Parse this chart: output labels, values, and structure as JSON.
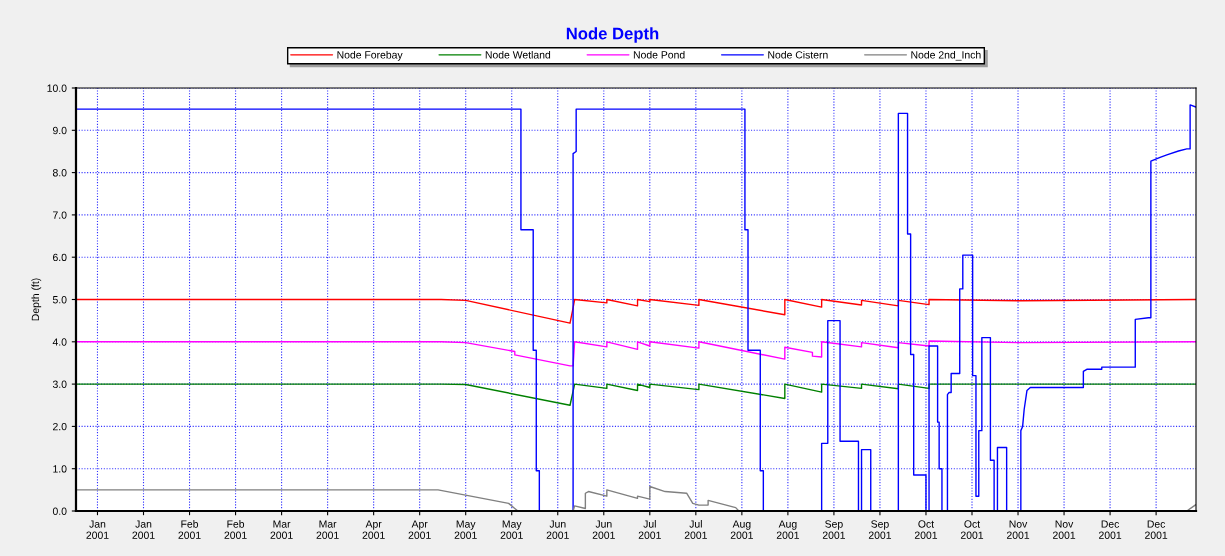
{
  "chart_data": {
    "type": "line",
    "title": "Node Depth",
    "ylabel": "Depth (ft)",
    "xlim": [
      "2001-01-01",
      "2002-01-01"
    ],
    "xticks": [
      {
        "value": "2001-01-08",
        "label": "Jan\n2001"
      },
      {
        "value": "2001-01-23",
        "label": "Jan\n2001"
      },
      {
        "value": "2001-02-07",
        "label": "Feb\n2001"
      },
      {
        "value": "2001-02-22",
        "label": "Feb\n2001"
      },
      {
        "value": "2001-03-09",
        "label": "Mar\n2001"
      },
      {
        "value": "2001-03-24",
        "label": "Mar\n2001"
      },
      {
        "value": "2001-04-08",
        "label": "Apr\n2001"
      },
      {
        "value": "2001-04-23",
        "label": "Apr\n2001"
      },
      {
        "value": "2001-05-08",
        "label": "May\n2001"
      },
      {
        "value": "2001-05-23",
        "label": "May\n2001"
      },
      {
        "value": "2001-06-07",
        "label": "Jun\n2001"
      },
      {
        "value": "2001-06-22",
        "label": "Jun\n2001"
      },
      {
        "value": "2001-07-07",
        "label": "Jul\n2001"
      },
      {
        "value": "2001-07-22",
        "label": "Jul\n2001"
      },
      {
        "value": "2001-08-06",
        "label": "Aug\n2001"
      },
      {
        "value": "2001-08-21",
        "label": "Aug\n2001"
      },
      {
        "value": "2001-09-05",
        "label": "Sep\n2001"
      },
      {
        "value": "2001-09-20",
        "label": "Sep\n2001"
      },
      {
        "value": "2001-10-05",
        "label": "Oct\n2001"
      },
      {
        "value": "2001-10-20",
        "label": "Oct\n2001"
      },
      {
        "value": "2001-11-04",
        "label": "Nov\n2001"
      },
      {
        "value": "2001-11-19",
        "label": "Nov\n2001"
      },
      {
        "value": "2001-12-04",
        "label": "Dec\n2001"
      },
      {
        "value": "2001-12-19",
        "label": "Dec\n2001"
      }
    ],
    "ylim": [
      0,
      10
    ],
    "yticks": [
      {
        "value": 0,
        "label": "0.0"
      },
      {
        "value": 1,
        "label": "1.0"
      },
      {
        "value": 2,
        "label": "2.0"
      },
      {
        "value": 3,
        "label": "3.0"
      },
      {
        "value": 4,
        "label": "4.0"
      },
      {
        "value": 5,
        "label": "5.0"
      },
      {
        "value": 6,
        "label": "6.0"
      },
      {
        "value": 7,
        "label": "7.0"
      },
      {
        "value": 8,
        "label": "8.0"
      },
      {
        "value": 9,
        "label": "9.0"
      },
      {
        "value": 10,
        "label": "10.0"
      }
    ],
    "grid": true,
    "legend": "top",
    "series": [
      {
        "name": "Node Forebay",
        "color": "#ff0000",
        "x": [
          "2001-01-01",
          "2001-04-30",
          "2001-05-08",
          "2001-06-11",
          "2001-06-12",
          "2001-06-12T12:00",
          "2001-06-23",
          "2001-06-23",
          "2001-07-03",
          "2001-07-03",
          "2001-07-07",
          "2001-07-07",
          "2001-07-23",
          "2001-07-23",
          "2001-08-20",
          "2001-08-20",
          "2001-09-01",
          "2001-09-01",
          "2001-09-14",
          "2001-09-14",
          "2001-09-26",
          "2001-09-26",
          "2001-10-06",
          "2001-10-06",
          "2001-11-05",
          "2001-12-31T23:00"
        ],
        "values": [
          5.0,
          5.0,
          4.98,
          4.44,
          4.8,
          5.0,
          4.92,
          5.0,
          4.85,
          5.0,
          4.95,
          5.0,
          4.86,
          5.0,
          4.64,
          5.0,
          4.82,
          5.0,
          4.87,
          4.98,
          4.85,
          4.98,
          4.88,
          5.0,
          4.97,
          5.0
        ]
      },
      {
        "name": "Node Wetland",
        "color": "#008000",
        "x": [
          "2001-01-01",
          "2001-04-30",
          "2001-05-08",
          "2001-06-11",
          "2001-06-12T12:00",
          "2001-06-23",
          "2001-06-23",
          "2001-07-03",
          "2001-07-03",
          "2001-07-07",
          "2001-07-07",
          "2001-07-23",
          "2001-07-23",
          "2001-08-20",
          "2001-08-20",
          "2001-09-01",
          "2001-09-01",
          "2001-09-14",
          "2001-09-14",
          "2001-09-26",
          "2001-09-26",
          "2001-10-06",
          "2001-10-06",
          "2001-12-31T23:00"
        ],
        "values": [
          3.0,
          3.0,
          2.99,
          2.5,
          3.0,
          2.9,
          3.0,
          2.85,
          3.0,
          2.92,
          3.0,
          2.87,
          3.0,
          2.66,
          3.0,
          2.81,
          3.0,
          2.9,
          3.0,
          2.89,
          3.0,
          2.9,
          3.0,
          3.0
        ]
      },
      {
        "name": "Node Pond",
        "color": "#ff00ff",
        "x": [
          "2001-01-01",
          "2001-04-30",
          "2001-05-08",
          "2001-05-24",
          "2001-05-24",
          "2001-06-11",
          "2001-06-12",
          "2001-06-12T12:00",
          "2001-06-23",
          "2001-06-23",
          "2001-07-03",
          "2001-07-03",
          "2001-07-07",
          "2001-07-07",
          "2001-07-23",
          "2001-07-23",
          "2001-08-20",
          "2001-08-20",
          "2001-08-29",
          "2001-08-29",
          "2001-09-01",
          "2001-09-01",
          "2001-09-14",
          "2001-09-14",
          "2001-09-26",
          "2001-09-26",
          "2001-10-06",
          "2001-10-06",
          "2001-11-05",
          "2001-12-31T23:00"
        ],
        "values": [
          4.0,
          4.0,
          3.98,
          3.77,
          3.69,
          3.43,
          3.43,
          4.0,
          3.88,
          4.0,
          3.82,
          4.0,
          3.9,
          4.0,
          3.85,
          4.0,
          3.59,
          3.87,
          3.75,
          3.66,
          3.64,
          4.0,
          3.88,
          3.98,
          3.86,
          3.98,
          3.9,
          4.02,
          3.98,
          4.0
        ]
      },
      {
        "name": "Node Cistern",
        "color": "#0000ff",
        "x": [
          "2001-01-01",
          "2001-05-26",
          "2001-05-26",
          "2001-05-30",
          "2001-05-30",
          "2001-05-31",
          "2001-05-31",
          "2001-06-01",
          "2001-06-01",
          "2001-06-12",
          "2001-06-12",
          "2001-06-13",
          "2001-06-13",
          "2001-08-07",
          "2001-08-07",
          "2001-08-08",
          "2001-08-08",
          "2001-08-12",
          "2001-08-12",
          "2001-08-13",
          "2001-08-13",
          "2001-09-01",
          "2001-09-01",
          "2001-09-03",
          "2001-09-03",
          "2001-09-07",
          "2001-09-07",
          "2001-09-13",
          "2001-09-13",
          "2001-09-14",
          "2001-09-14",
          "2001-09-17",
          "2001-09-17",
          "2001-09-26",
          "2001-09-26",
          "2001-09-29",
          "2001-09-29",
          "2001-09-30",
          "2001-09-30",
          "2001-10-01",
          "2001-10-01",
          "2001-10-05",
          "2001-10-05",
          "2001-10-06",
          "2001-10-06",
          "2001-10-08T19:00",
          "2001-10-08T19:00",
          "2001-10-09T07:00",
          "2001-10-09T07:00",
          "2001-10-10T05:00",
          "2001-10-10T05:00",
          "2001-10-12",
          "2001-10-12",
          "2001-10-12T12:00",
          "2001-10-13T05:00",
          "2001-10-13T05:00",
          "2001-10-16",
          "2001-10-16",
          "2001-10-17",
          "2001-10-17",
          "2001-10-20T05:00",
          "2001-10-20T05:00",
          "2001-10-21T07:00",
          "2001-10-21T07:00",
          "2001-10-22T05:00",
          "2001-10-22T05:00",
          "2001-10-23T05:00",
          "2001-10-23T05:00",
          "2001-10-26",
          "2001-10-26",
          "2001-10-27T05:00",
          "2001-10-27T05:00",
          "2001-10-28T07:00",
          "2001-10-28T07:00",
          "2001-10-31T07:00",
          "2001-10-31T07:00",
          "2001-11-04T22:00",
          "2001-11-04T22:00",
          "2001-11-05T12:00",
          "2001-11-06",
          "2001-11-06T22:00",
          "2001-11-08",
          "2001-11-25T07:00",
          "2001-11-25T07:00",
          "2001-11-26T10:00",
          "2001-12-01T07:00",
          "2001-12-01T07:00",
          "2001-12-12T05:00",
          "2001-12-12T05:00",
          "2001-12-16T12:00",
          "2001-12-17T07:00",
          "2001-12-17T07:00",
          "2001-12-20T07:00",
          "2001-12-22T12:00",
          "2001-12-26T07:00",
          "2001-12-29",
          "2001-12-30T02:00",
          "2001-12-30T02:00",
          "2001-12-31T23:00"
        ],
        "values": [
          9.5,
          9.5,
          6.65,
          6.65,
          3.8,
          3.8,
          0.95,
          0.95,
          0,
          0,
          8.45,
          8.5,
          9.5,
          9.5,
          6.65,
          6.65,
          3.8,
          3.8,
          0.95,
          0.95,
          0,
          0,
          1.6,
          1.6,
          4.5,
          4.5,
          1.65,
          1.65,
          0,
          0,
          1.45,
          1.45,
          0,
          0,
          9.4,
          9.4,
          6.55,
          6.55,
          3.7,
          3.7,
          0.85,
          0.85,
          0,
          0,
          3.9,
          3.9,
          2.1,
          2.1,
          1.0,
          1.0,
          0,
          0,
          2.75,
          2.8,
          2.8,
          3.25,
          3.25,
          5.25,
          5.25,
          6.05,
          6.05,
          3.2,
          3.2,
          0.35,
          0.35,
          1.9,
          1.9,
          4.1,
          4.1,
          1.2,
          1.2,
          0,
          0,
          1.5,
          1.5,
          0,
          0,
          1.9,
          2.0,
          2.4,
          2.85,
          2.92,
          2.92,
          3.3,
          3.35,
          3.35,
          3.4,
          3.4,
          4.53,
          4.57,
          4.57,
          8.27,
          8.36,
          8.42,
          8.51,
          8.56,
          8.56,
          9.6,
          9.55
        ]
      },
      {
        "name": "Node 2nd_Inch",
        "color": "#808080",
        "x": [
          "2001-01-01",
          "2001-04-29",
          "2001-05-22",
          "2001-05-24",
          "2001-05-25",
          "2001-06-12",
          "2001-06-12T12:00",
          "2001-06-16",
          "2001-06-16",
          "2001-06-17",
          "2001-06-23",
          "2001-06-23",
          "2001-07-03",
          "2001-07-03",
          "2001-07-07",
          "2001-07-07",
          "2001-07-12",
          "2001-07-19",
          "2001-07-21",
          "2001-07-23",
          "2001-07-26",
          "2001-07-26",
          "2001-08-04",
          "2001-08-05",
          "2001-12-29",
          "2001-12-31T23:00"
        ],
        "values": [
          0.5,
          0.5,
          0.18,
          0.06,
          0,
          0,
          0.12,
          0.06,
          0.42,
          0.46,
          0.35,
          0.5,
          0.3,
          0.35,
          0.28,
          0.58,
          0.46,
          0.42,
          0.18,
          0.14,
          0.14,
          0.25,
          0.08,
          0,
          0,
          0.15
        ]
      }
    ]
  }
}
